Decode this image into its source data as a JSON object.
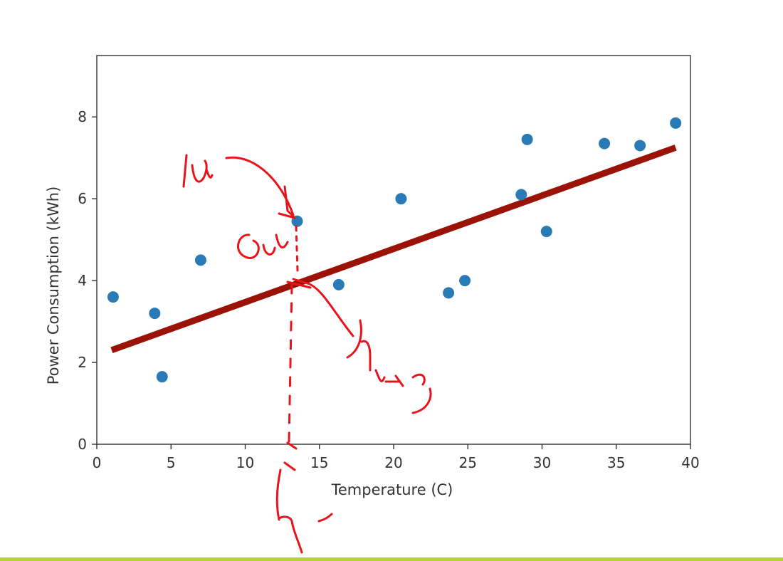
{
  "chart_data": {
    "type": "scatter",
    "xlabel": "Temperature (C)",
    "ylabel": "Power Consumption (kWh)",
    "xlim": [
      0,
      40
    ],
    "ylim": [
      0,
      9.5
    ],
    "x_ticks": [
      0,
      5,
      10,
      15,
      20,
      25,
      30,
      35,
      40
    ],
    "y_ticks": [
      0,
      2,
      4,
      6,
      8
    ],
    "grid": false,
    "points": [
      {
        "x": 1.1,
        "y": 3.6
      },
      {
        "x": 3.9,
        "y": 3.2
      },
      {
        "x": 4.4,
        "y": 1.65
      },
      {
        "x": 7.0,
        "y": 4.5
      },
      {
        "x": 13.5,
        "y": 5.45
      },
      {
        "x": 16.3,
        "y": 3.9
      },
      {
        "x": 20.5,
        "y": 6.0
      },
      {
        "x": 23.7,
        "y": 3.7
      },
      {
        "x": 24.8,
        "y": 4.0
      },
      {
        "x": 28.6,
        "y": 6.1
      },
      {
        "x": 29.0,
        "y": 7.45
      },
      {
        "x": 30.3,
        "y": 5.2
      },
      {
        "x": 34.2,
        "y": 7.35
      },
      {
        "x": 36.6,
        "y": 7.3
      },
      {
        "x": 39.0,
        "y": 7.85
      }
    ],
    "fit_line": {
      "x": [
        1.0,
        39.0
      ],
      "y": [
        2.3,
        7.25
      ]
    },
    "colors": {
      "points": "#2a7ab5",
      "fit_line": "#9b1206",
      "annotation": "#e8141c",
      "axes": "#333333"
    }
  }
}
